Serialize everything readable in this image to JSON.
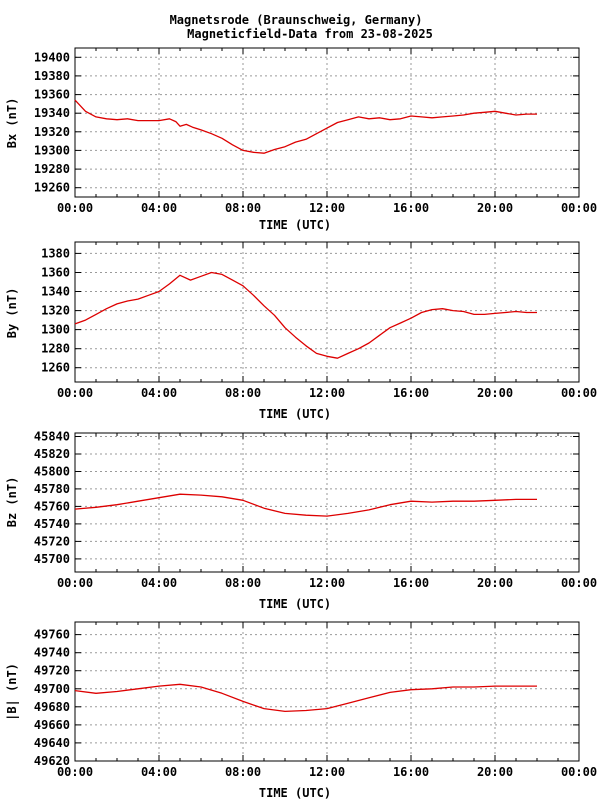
{
  "figure": {
    "title_line1": "Magnetsrode (Braunschweig, Germany)",
    "title_line2": "Magneticfield-Data from 23-08-2025"
  },
  "colors": {
    "series": "#dd0000",
    "grid": "#9a9a9a",
    "axis": "#000000"
  },
  "chart_data": [
    {
      "type": "line",
      "title": "Magnetsrode (Braunschweig, Germany) Magneticfield-Data from 23-08-2025",
      "xlabel": "TIME (UTC)",
      "ylabel": "Bx (nT)",
      "xlim": [
        0,
        24
      ],
      "ylim": [
        19250,
        19410
      ],
      "x_ticks": [
        "00:00",
        "04:00",
        "08:00",
        "12:00",
        "16:00",
        "20:00",
        "00:00"
      ],
      "y_ticks": [
        19260,
        19280,
        19300,
        19320,
        19340,
        19360,
        19380,
        19400
      ],
      "grid": true,
      "series": [
        {
          "values": [
            [
              0,
              19354
            ],
            [
              0.5,
              19342
            ],
            [
              1,
              19336
            ],
            [
              1.5,
              19334
            ],
            [
              2,
              19333
            ],
            [
              2.5,
              19334
            ],
            [
              3,
              19332
            ],
            [
              3.5,
              19332
            ],
            [
              4,
              19332
            ],
            [
              4.5,
              19334
            ],
            [
              4.8,
              19331
            ],
            [
              5,
              19326
            ],
            [
              5.3,
              19328
            ],
            [
              5.6,
              19325
            ],
            [
              6,
              19322
            ],
            [
              6.5,
              19318
            ],
            [
              7,
              19313
            ],
            [
              7.5,
              19306
            ],
            [
              8,
              19300
            ],
            [
              8.5,
              19298
            ],
            [
              9,
              19297
            ],
            [
              9.5,
              19301
            ],
            [
              10,
              19304
            ],
            [
              10.5,
              19309
            ],
            [
              11,
              19312
            ],
            [
              11.5,
              19318
            ],
            [
              12,
              19324
            ],
            [
              12.5,
              19330
            ],
            [
              13,
              19333
            ],
            [
              13.5,
              19336
            ],
            [
              14,
              19334
            ],
            [
              14.5,
              19335
            ],
            [
              15,
              19333
            ],
            [
              15.5,
              19334
            ],
            [
              16,
              19337
            ],
            [
              16.5,
              19336
            ],
            [
              17,
              19335
            ],
            [
              17.5,
              19336
            ],
            [
              18,
              19337
            ],
            [
              18.5,
              19338
            ],
            [
              19,
              19340
            ],
            [
              19.5,
              19341
            ],
            [
              20,
              19342
            ],
            [
              20.5,
              19340
            ],
            [
              21,
              19338
            ],
            [
              21.5,
              19339
            ],
            [
              22,
              19339
            ]
          ]
        }
      ]
    },
    {
      "type": "line",
      "xlabel": "TIME (UTC)",
      "ylabel": "By (nT)",
      "xlim": [
        0,
        24
      ],
      "ylim": [
        1245,
        1392
      ],
      "x_ticks": [
        "00:00",
        "04:00",
        "08:00",
        "12:00",
        "16:00",
        "20:00",
        "00:00"
      ],
      "y_ticks": [
        1260,
        1280,
        1300,
        1320,
        1340,
        1360,
        1380
      ],
      "grid": true,
      "series": [
        {
          "values": [
            [
              0,
              1306
            ],
            [
              0.5,
              1310
            ],
            [
              1,
              1316
            ],
            [
              1.5,
              1322
            ],
            [
              2,
              1327
            ],
            [
              2.5,
              1330
            ],
            [
              3,
              1332
            ],
            [
              3.5,
              1336
            ],
            [
              4,
              1340
            ],
            [
              4.5,
              1348
            ],
            [
              5,
              1357
            ],
            [
              5.5,
              1352
            ],
            [
              6,
              1356
            ],
            [
              6.5,
              1360
            ],
            [
              7,
              1358
            ],
            [
              7.5,
              1352
            ],
            [
              8,
              1346
            ],
            [
              8.5,
              1336
            ],
            [
              9,
              1325
            ],
            [
              9.5,
              1315
            ],
            [
              10,
              1302
            ],
            [
              10.5,
              1292
            ],
            [
              11,
              1283
            ],
            [
              11.5,
              1275
            ],
            [
              12,
              1272
            ],
            [
              12.5,
              1270
            ],
            [
              13,
              1275
            ],
            [
              13.5,
              1280
            ],
            [
              14,
              1286
            ],
            [
              14.5,
              1294
            ],
            [
              15,
              1302
            ],
            [
              15.5,
              1307
            ],
            [
              16,
              1312
            ],
            [
              16.5,
              1318
            ],
            [
              17,
              1321
            ],
            [
              17.5,
              1322
            ],
            [
              18,
              1320
            ],
            [
              18.5,
              1319
            ],
            [
              19,
              1316
            ],
            [
              19.5,
              1316
            ],
            [
              20,
              1317
            ],
            [
              20.5,
              1318
            ],
            [
              21,
              1319
            ],
            [
              21.5,
              1318
            ],
            [
              22,
              1318
            ]
          ]
        }
      ]
    },
    {
      "type": "line",
      "xlabel": "TIME (UTC)",
      "ylabel": "Bz (nT)",
      "xlim": [
        0,
        24
      ],
      "ylim": [
        45685,
        45844
      ],
      "x_ticks": [
        "00:00",
        "04:00",
        "08:00",
        "12:00",
        "16:00",
        "20:00",
        "00:00"
      ],
      "y_ticks": [
        45700,
        45720,
        45740,
        45760,
        45780,
        45800,
        45820,
        45840
      ],
      "grid": true,
      "series": [
        {
          "values": [
            [
              0,
              45757
            ],
            [
              1,
              45759
            ],
            [
              2,
              45762
            ],
            [
              3,
              45766
            ],
            [
              4,
              45770
            ],
            [
              5,
              45774
            ],
            [
              6,
              45773
            ],
            [
              7,
              45771
            ],
            [
              8,
              45767
            ],
            [
              9,
              45758
            ],
            [
              10,
              45752
            ],
            [
              11,
              45750
            ],
            [
              12,
              45749
            ],
            [
              13,
              45752
            ],
            [
              14,
              45756
            ],
            [
              15,
              45762
            ],
            [
              16,
              45766
            ],
            [
              17,
              45765
            ],
            [
              18,
              45766
            ],
            [
              19,
              45766
            ],
            [
              20,
              45767
            ],
            [
              21,
              45768
            ],
            [
              22,
              45768
            ]
          ]
        }
      ]
    },
    {
      "type": "line",
      "xlabel": "TIME (UTC)",
      "ylabel": "|B| (nT)",
      "xlim": [
        0,
        24
      ],
      "ylim": [
        49620,
        49774
      ],
      "x_ticks": [
        "00:00",
        "04:00",
        "08:00",
        "12:00",
        "16:00",
        "20:00",
        "00:00"
      ],
      "y_ticks": [
        49620,
        49640,
        49660,
        49680,
        49700,
        49720,
        49740,
        49760
      ],
      "grid": true,
      "series": [
        {
          "values": [
            [
              0,
              49698
            ],
            [
              1,
              49695
            ],
            [
              2,
              49697
            ],
            [
              3,
              49700
            ],
            [
              4,
              49703
            ],
            [
              5,
              49705
            ],
            [
              6,
              49702
            ],
            [
              7,
              49695
            ],
            [
              8,
              49686
            ],
            [
              9,
              49678
            ],
            [
              10,
              49675
            ],
            [
              11,
              49676
            ],
            [
              12,
              49678
            ],
            [
              13,
              49684
            ],
            [
              14,
              49690
            ],
            [
              15,
              49696
            ],
            [
              16,
              49699
            ],
            [
              17,
              49700
            ],
            [
              18,
              49702
            ],
            [
              19,
              49702
            ],
            [
              20,
              49703
            ],
            [
              21,
              49703
            ],
            [
              22,
              49703
            ]
          ]
        }
      ]
    }
  ]
}
